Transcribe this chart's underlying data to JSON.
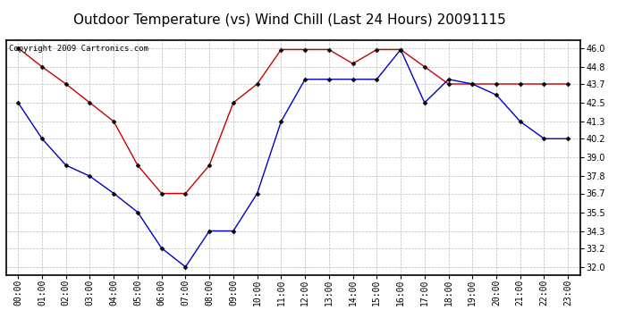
{
  "title": "Outdoor Temperature (vs) Wind Chill (Last 24 Hours) 20091115",
  "copyright_text": "Copyright 2009 Cartronics.com",
  "x_labels": [
    "00:00",
    "01:00",
    "02:00",
    "03:00",
    "04:00",
    "05:00",
    "06:00",
    "07:00",
    "08:00",
    "09:00",
    "10:00",
    "11:00",
    "12:00",
    "13:00",
    "14:00",
    "15:00",
    "16:00",
    "17:00",
    "18:00",
    "19:00",
    "20:00",
    "21:00",
    "22:00",
    "23:00"
  ],
  "y_ticks": [
    32.0,
    33.2,
    34.3,
    35.5,
    36.7,
    37.8,
    39.0,
    40.2,
    41.3,
    42.5,
    43.7,
    44.8,
    46.0
  ],
  "ylim": [
    31.5,
    46.5
  ],
  "red_data": [
    46.0,
    44.8,
    43.7,
    42.5,
    41.3,
    38.5,
    36.7,
    36.7,
    38.5,
    42.5,
    43.7,
    45.9,
    45.9,
    45.9,
    45.0,
    45.9,
    45.9,
    44.8,
    43.7,
    43.7,
    43.7,
    43.7,
    43.7,
    43.7
  ],
  "blue_data": [
    42.5,
    40.2,
    38.5,
    37.8,
    36.7,
    35.5,
    33.2,
    32.0,
    34.3,
    34.3,
    36.7,
    41.3,
    44.0,
    44.0,
    44.0,
    44.0,
    45.9,
    42.5,
    44.0,
    43.7,
    43.0,
    41.3,
    40.2,
    40.2
  ],
  "red_color": "#cc0000",
  "blue_color": "#0000cc",
  "bg_color": "#ffffff",
  "plot_bg_color": "#ffffff",
  "grid_color": "#bbbbbb",
  "title_fontsize": 11,
  "copyright_fontsize": 6.5,
  "tick_fontsize": 7,
  "marker": "D",
  "markersize": 2.5
}
